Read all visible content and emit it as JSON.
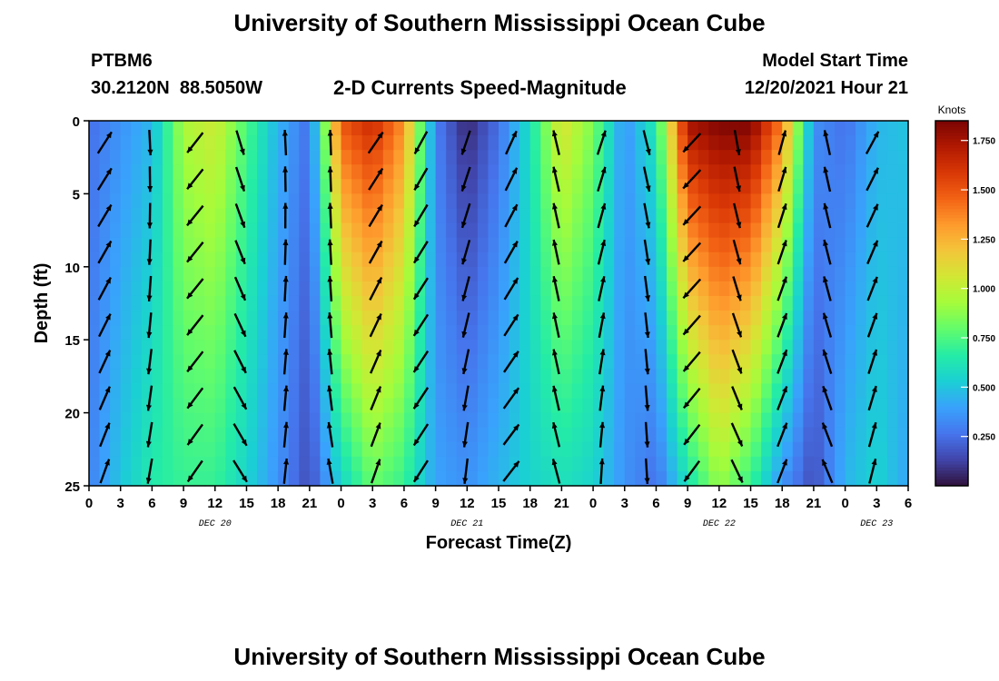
{
  "page": {
    "title": "University of Southern Mississippi Ocean Cube",
    "title_repeat": "University of Southern Mississippi Ocean Cube",
    "station_id": "PTBM6",
    "station_coords": "30.2120N  88.5050W",
    "center_subtitle": "2-D Currents Speed-Magnitude",
    "model_start_label": "Model Start Time",
    "model_start_value": "12/20/2021 Hour 21"
  },
  "chart_data": {
    "type": "heatmap",
    "title": "2-D Currents Speed-Magnitude",
    "xlabel": "Forecast Time(Z)",
    "ylabel": "Depth (ft)",
    "x_tick_labels": [
      "0",
      "3",
      "6",
      "9",
      "12",
      "15",
      "18",
      "21",
      "0",
      "3",
      "6",
      "9",
      "12",
      "15",
      "18",
      "21",
      "0",
      "3",
      "6",
      "9",
      "12",
      "15",
      "18",
      "21",
      "0",
      "3",
      "6"
    ],
    "x_range_hours": [
      0,
      78
    ],
    "date_labels": [
      {
        "text": "DEC 20",
        "hour": 12
      },
      {
        "text": "DEC 21",
        "hour": 36
      },
      {
        "text": "DEC 22",
        "hour": 60
      },
      {
        "text": "DEC 23",
        "hour": 75
      }
    ],
    "y_ticks": [
      "0",
      "5",
      "10",
      "15",
      "20",
      "25"
    ],
    "y_range_ft": [
      0,
      25
    ],
    "colorbar": {
      "title": "Knots",
      "range": [
        0.0,
        1.85
      ],
      "tick_labels": [
        "1.750",
        "1.500",
        "1.250",
        "1.000",
        "0.750",
        "0.500",
        "0.250"
      ],
      "tick_values": [
        1.75,
        1.5,
        1.25,
        1.0,
        0.75,
        0.5,
        0.25
      ],
      "colors": [
        "#30123b",
        "#4145ab",
        "#4675ed",
        "#39a2fc",
        "#1bcfd4",
        "#24eca6",
        "#61fc6c",
        "#a4fc3b",
        "#d1e834",
        "#f3c63a",
        "#fe9b2d",
        "#f36315",
        "#d93806",
        "#b11901",
        "#7a0403"
      ]
    },
    "speed_columns_knots": {
      "time_hours": [
        0,
        3,
        6,
        9,
        12,
        15,
        18,
        21,
        24,
        27,
        30,
        33,
        36,
        39,
        42,
        45,
        48,
        51,
        54,
        57,
        60,
        63,
        66,
        69,
        72,
        75,
        78
      ],
      "top_depth": [
        0.25,
        0.35,
        0.45,
        0.95,
        1.05,
        0.75,
        0.45,
        0.25,
        1.5,
        1.65,
        1.35,
        0.3,
        0.05,
        0.25,
        0.6,
        1.1,
        0.85,
        0.35,
        0.65,
        1.75,
        1.85,
        1.85,
        1.4,
        0.35,
        0.25,
        0.45,
        0.5
      ],
      "bottom_depth": [
        0.3,
        0.5,
        0.65,
        0.7,
        0.7,
        0.55,
        0.35,
        0.15,
        0.55,
        0.8,
        0.7,
        0.4,
        0.35,
        0.45,
        0.55,
        0.6,
        0.55,
        0.35,
        0.25,
        0.6,
        0.9,
        0.7,
        0.35,
        0.15,
        0.45,
        0.55,
        0.4
      ]
    }
  }
}
